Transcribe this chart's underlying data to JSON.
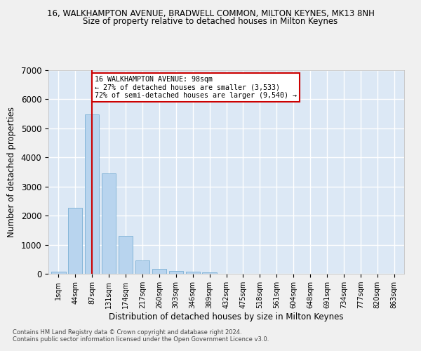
{
  "title": "16, WALKHAMPTON AVENUE, BRADWELL COMMON, MILTON KEYNES, MK13 8NH",
  "subtitle": "Size of property relative to detached houses in Milton Keynes",
  "xlabel": "Distribution of detached houses by size in Milton Keynes",
  "ylabel": "Number of detached properties",
  "bar_color": "#b8d4ee",
  "bar_edge_color": "#7aafd4",
  "background_color": "#dce8f5",
  "fig_background_color": "#f0f0f0",
  "grid_color": "#ffffff",
  "categories": [
    "1sqm",
    "44sqm",
    "87sqm",
    "131sqm",
    "174sqm",
    "217sqm",
    "260sqm",
    "303sqm",
    "346sqm",
    "389sqm",
    "432sqm",
    "475sqm",
    "518sqm",
    "561sqm",
    "604sqm",
    "648sqm",
    "691sqm",
    "734sqm",
    "777sqm",
    "820sqm",
    "863sqm"
  ],
  "values": [
    80,
    2270,
    5480,
    3440,
    1310,
    470,
    160,
    100,
    70,
    40,
    0,
    0,
    0,
    0,
    0,
    0,
    0,
    0,
    0,
    0,
    0
  ],
  "ylim": [
    0,
    7000
  ],
  "yticks": [
    0,
    1000,
    2000,
    3000,
    4000,
    5000,
    6000,
    7000
  ],
  "property_bar_index": 2,
  "vline_color": "#cc0000",
  "annotation_text": "16 WALKHAMPTON AVENUE: 98sqm\n← 27% of detached houses are smaller (3,533)\n72% of semi-detached houses are larger (9,540) →",
  "annotation_box_color": "#ffffff",
  "annotation_box_edge": "#cc0000",
  "footer_line1": "Contains HM Land Registry data © Crown copyright and database right 2024.",
  "footer_line2": "Contains public sector information licensed under the Open Government Licence v3.0."
}
